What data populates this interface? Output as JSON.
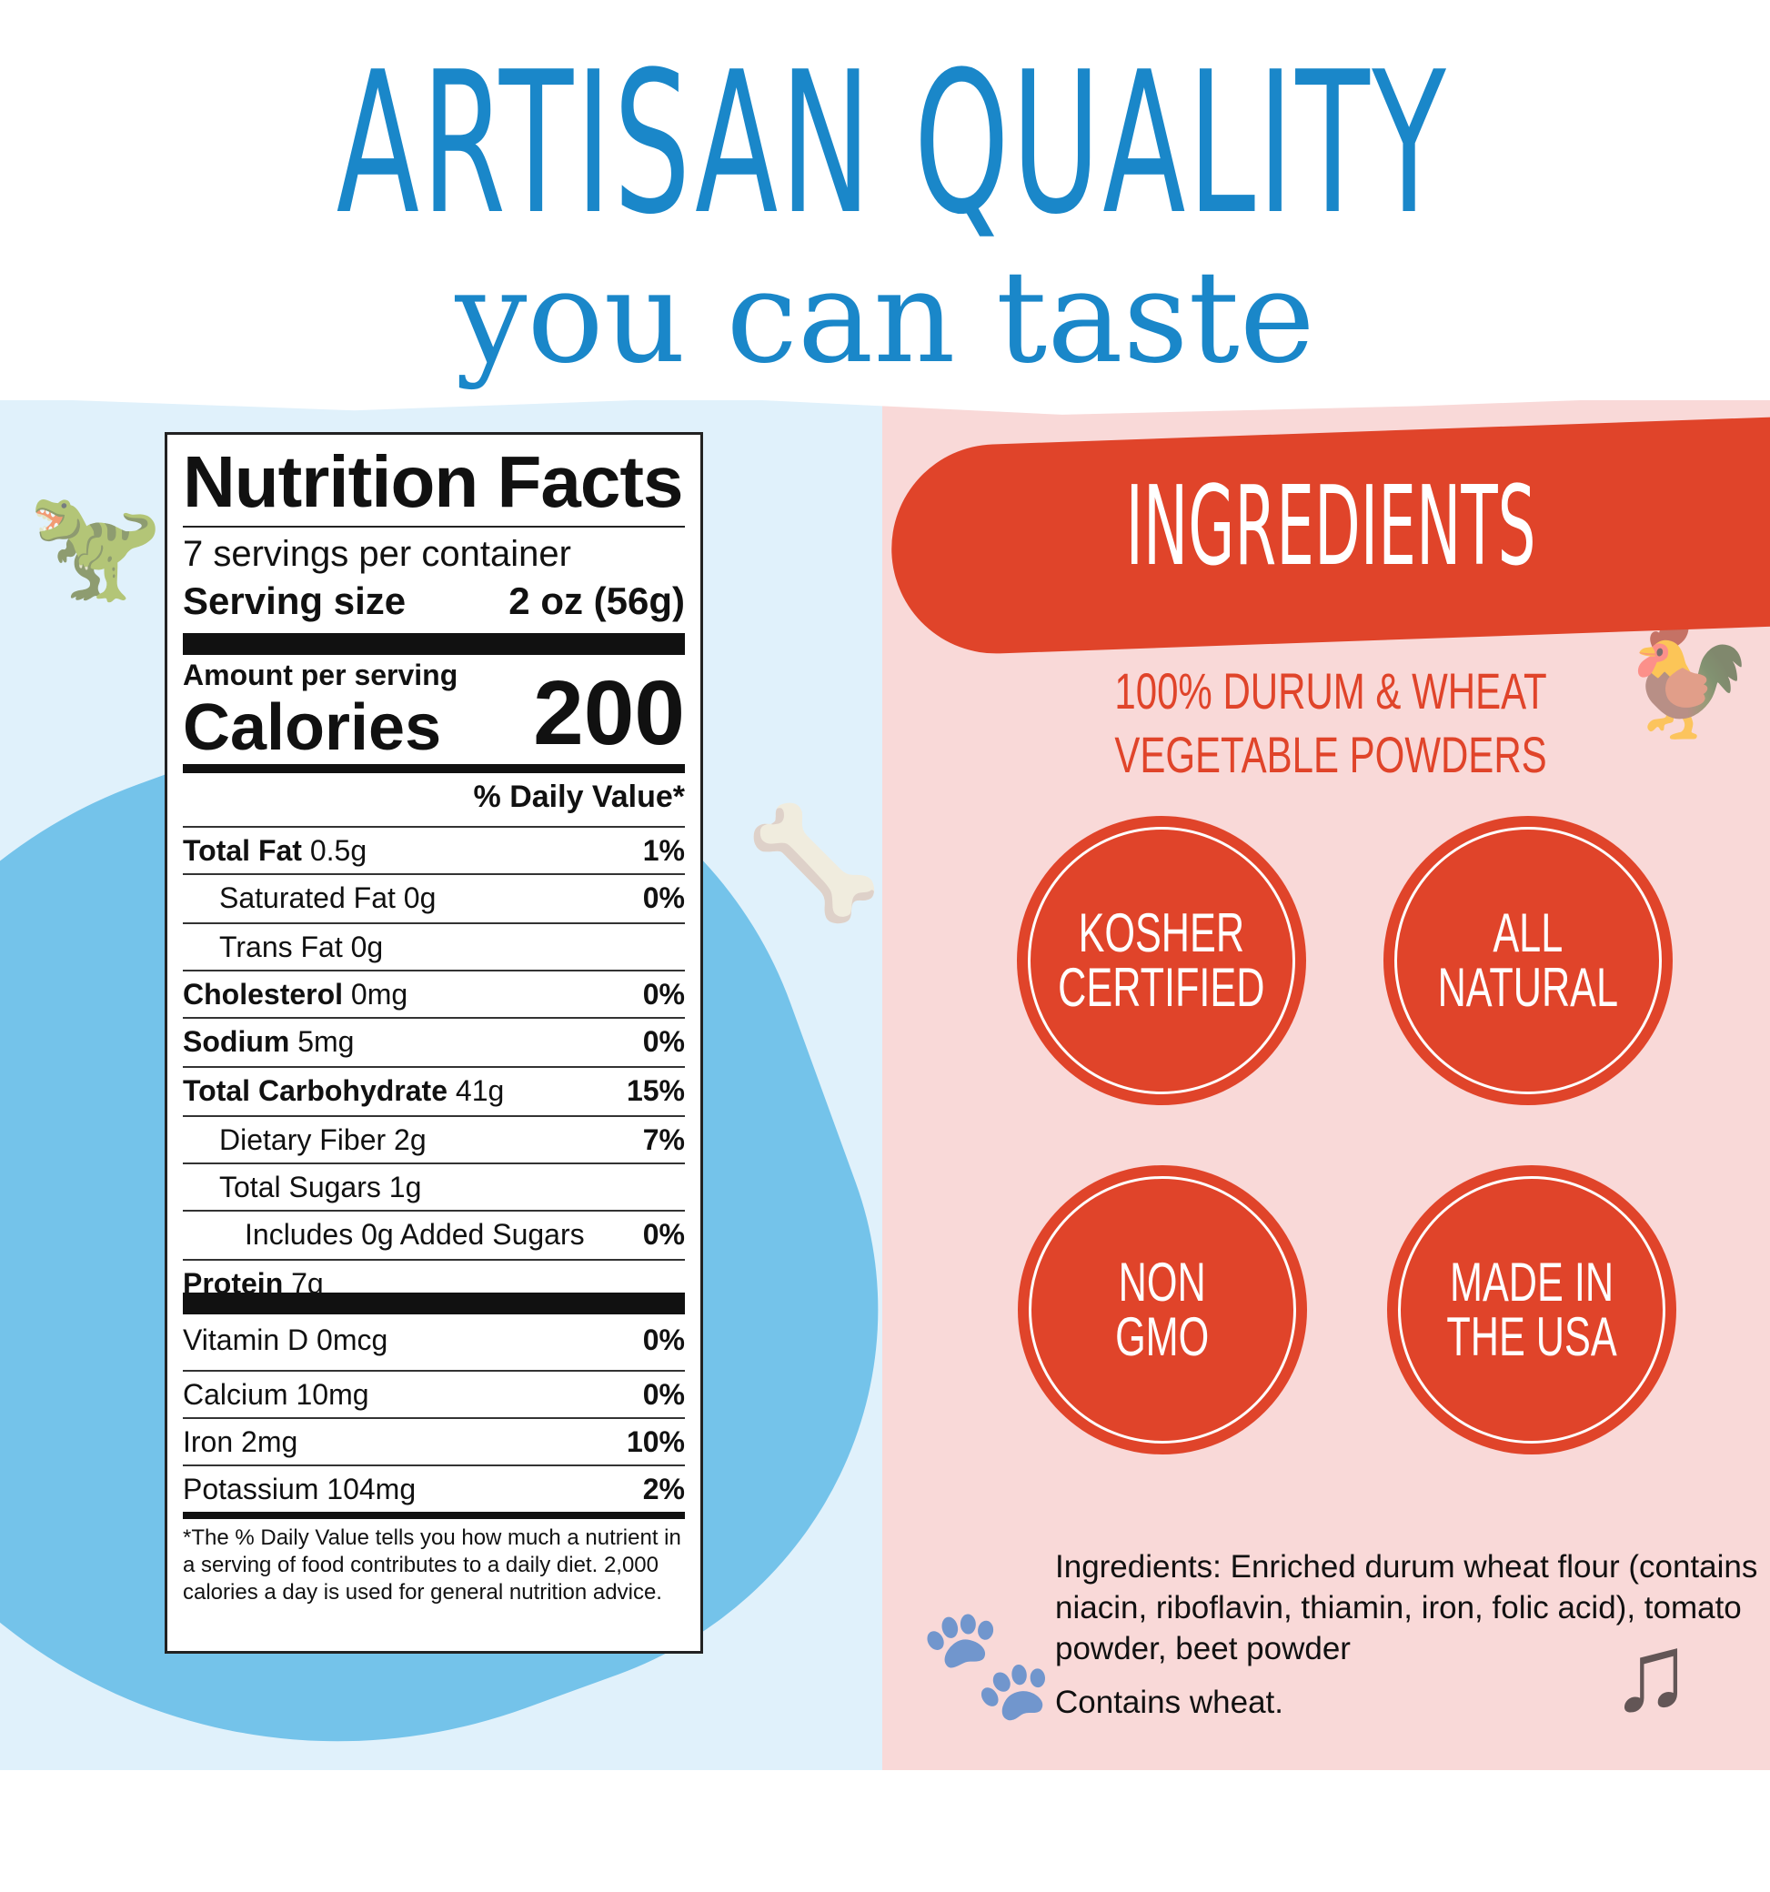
{
  "header": {
    "title": "ARTISAN QUALITY",
    "subtitle": "you can taste"
  },
  "nutrition": {
    "title": "Nutrition Facts",
    "servings": "7 servings per container",
    "serving_size_label": "Serving size",
    "serving_size_value": "2 oz (56g)",
    "amount_label": "Amount per serving",
    "calories_label": "Calories",
    "calories_value": "200",
    "dv_header": "% Daily Value*",
    "rows": [
      {
        "name": "Total Fat",
        "amount": "0.5g",
        "dv": "1%"
      },
      {
        "name": "Saturated Fat 0g",
        "amount": "",
        "dv": "0%"
      },
      {
        "name": "Trans Fat 0g",
        "amount": "",
        "dv": ""
      },
      {
        "name": "Cholesterol",
        "amount": "0mg",
        "dv": "0%"
      },
      {
        "name": "Sodium",
        "amount": "5mg",
        "dv": "0%"
      },
      {
        "name": "Total Carbohydrate",
        "amount": "41g",
        "dv": "15%"
      },
      {
        "name": "Dietary Fiber 2g",
        "amount": "",
        "dv": "7%"
      },
      {
        "name": "Total Sugars 1g",
        "amount": "",
        "dv": ""
      },
      {
        "name": "Includes 0g Added Sugars",
        "amount": "",
        "dv": "0%"
      },
      {
        "name": "Protein",
        "amount": "7g",
        "dv": ""
      },
      {
        "name": "Vitamin D 0mcg",
        "amount": "",
        "dv": "0%"
      },
      {
        "name": "Calcium 10mg",
        "amount": "",
        "dv": "0%"
      },
      {
        "name": "Iron 2mg",
        "amount": "",
        "dv": "10%"
      },
      {
        "name": "Potassium 104mg",
        "amount": "",
        "dv": "2%"
      }
    ],
    "footnote": "*The % Daily Value tells you how much a nutrient in a serving of food contributes to a daily diet. 2,000 calories a day is used for general nutrition advice."
  },
  "ingredients": {
    "banner": "INGREDIENTS",
    "subtitle_line1": "100% DURUM & WHEAT",
    "subtitle_line2": "VEGETABLE POWDERS",
    "badges": [
      "KOSHER\nCERTIFIED",
      "ALL\nNATURAL",
      "NON\nGMO",
      "MADE IN\nTHE USA"
    ],
    "text": "Ingredients: Enriched durum wheat flour (contains niacin, riboflavin, thiamin, iron, folic acid), tomato powder, beet powder",
    "allergen": "Contains wheat."
  },
  "colors": {
    "blue": "#1a87c9",
    "red": "#e0442a",
    "light_blue": "#e0f1fb",
    "pink": "#f9d9d8"
  }
}
